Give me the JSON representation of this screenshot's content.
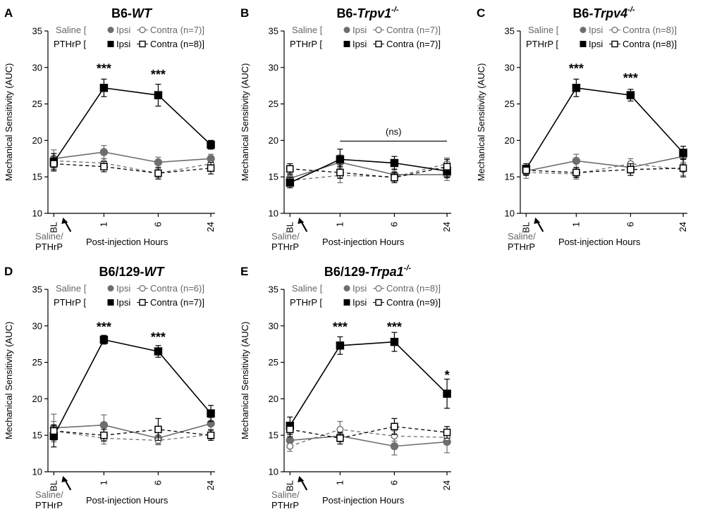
{
  "figure": {
    "y_axis_label": "Mechanical Sensitivity (AUC)",
    "x_axis_label": "Post-injection Hours",
    "x_tick_labels": [
      "BL",
      "1",
      "6",
      "24"
    ],
    "injection_label_1": "Saline/",
    "injection_label_2": "PTHrP",
    "legend_saline": "Saline [",
    "legend_pthrp": "PTHrP [",
    "legend_ipsi": "Ipsi",
    "colors": {
      "saline": "#6e6e6e",
      "pthrp": "#000000"
    }
  },
  "chart_data": [
    {
      "type": "line",
      "letter": "A",
      "title_prefix": "B6-",
      "title_italic": "WT",
      "title_sup": "",
      "xlabel": "Post-injection Hours",
      "ylabel": "Mechanical Sensitivity (AUC)",
      "ylim": [
        10,
        35
      ],
      "yticks": [
        10,
        15,
        20,
        25,
        30,
        35
      ],
      "categories": [
        "BL",
        "1",
        "6",
        "24"
      ],
      "legend_saline_tail": "Contra (n=7)]",
      "legend_pthrp_tail": "Contra (n=8)]",
      "series": [
        {
          "name": "Saline Ipsi",
          "values": [
            17.5,
            18.4,
            17.0,
            17.5
          ],
          "errors": [
            1.2,
            0.9,
            0.7,
            0.6
          ]
        },
        {
          "name": "Saline Contra",
          "values": [
            17.2,
            16.9,
            15.5,
            16.8
          ],
          "errors": [
            1.0,
            0.6,
            0.6,
            0.7
          ]
        },
        {
          "name": "PTHrP Ipsi",
          "values": [
            17.0,
            27.2,
            26.2,
            19.4
          ],
          "errors": [
            1.2,
            1.2,
            1.5,
            0.6
          ]
        },
        {
          "name": "PTHrP Contra",
          "values": [
            16.8,
            16.4,
            15.5,
            16.2
          ],
          "errors": [
            0.8,
            0.7,
            0.8,
            0.8
          ]
        }
      ],
      "annotations": [
        {
          "x_index": 1,
          "text": "***",
          "y": 30.2
        },
        {
          "x_index": 2,
          "text": "***",
          "y": 29.4
        }
      ],
      "bracket": null
    },
    {
      "type": "line",
      "letter": "B",
      "title_prefix": "B6-",
      "title_italic": "Trpv1",
      "title_sup": "-/-",
      "xlabel": "Post-injection Hours",
      "ylabel": "Mechanical Sensitivity (AUC)",
      "ylim": [
        10,
        35
      ],
      "yticks": [
        10,
        15,
        20,
        25,
        30,
        35
      ],
      "categories": [
        "BL",
        "1",
        "6",
        "24"
      ],
      "legend_saline_tail": "Contra (n=7)]",
      "legend_pthrp_tail": "Contra (n=7)]",
      "series": [
        {
          "name": "Saline Ipsi",
          "values": [
            14.8,
            17.0,
            15.3,
            15.3
          ],
          "errors": [
            0.8,
            1.0,
            0.8,
            0.8
          ]
        },
        {
          "name": "Saline Contra",
          "values": [
            14.5,
            15.2,
            15.0,
            16.8
          ],
          "errors": [
            0.8,
            1.0,
            0.6,
            0.8
          ]
        },
        {
          "name": "PTHrP Ipsi",
          "values": [
            14.2,
            17.4,
            16.9,
            15.8
          ],
          "errors": [
            0.7,
            1.4,
            0.9,
            0.9
          ]
        },
        {
          "name": "PTHrP Contra",
          "values": [
            16.1,
            15.6,
            14.9,
            16.4
          ],
          "errors": [
            0.7,
            0.8,
            0.7,
            1.0
          ]
        }
      ],
      "annotations": [],
      "bracket": {
        "from_index": 1,
        "to_index": 3,
        "y": 19.9,
        "text": "(ns)"
      }
    },
    {
      "type": "line",
      "letter": "C",
      "title_prefix": "B6-",
      "title_italic": "Trpv4",
      "title_sup": "-/-",
      "xlabel": "Post-injection Hours",
      "ylabel": "Mechanical Sensitivity (AUC)",
      "ylim": [
        10,
        35
      ],
      "yticks": [
        10,
        15,
        20,
        25,
        30,
        35
      ],
      "categories": [
        "BL",
        "1",
        "6",
        "24"
      ],
      "legend_saline_tail": "Contra (n=8)]",
      "legend_pthrp_tail": "Contra (n=8)]",
      "series": [
        {
          "name": "Saline Ipsi",
          "values": [
            15.8,
            17.2,
            16.3,
            17.8
          ],
          "errors": [
            0.6,
            0.9,
            0.8,
            0.8
          ]
        },
        {
          "name": "Saline Contra",
          "values": [
            15.6,
            15.4,
            16.8,
            16.0
          ],
          "errors": [
            0.8,
            0.7,
            0.7,
            0.8
          ]
        },
        {
          "name": "PTHrP Ipsi",
          "values": [
            16.1,
            27.2,
            26.2,
            18.3
          ],
          "errors": [
            0.7,
            1.2,
            0.8,
            0.9
          ]
        },
        {
          "name": "PTHrP Contra",
          "values": [
            15.9,
            15.6,
            16.0,
            16.2
          ],
          "errors": [
            0.7,
            0.7,
            0.8,
            1.2
          ]
        }
      ],
      "annotations": [
        {
          "x_index": 1,
          "text": "***",
          "y": 30.2
        },
        {
          "x_index": 2,
          "text": "***",
          "y": 28.9
        }
      ],
      "bracket": null
    },
    {
      "type": "line",
      "letter": "D",
      "title_prefix": "B6/129-",
      "title_italic": "WT",
      "title_sup": "",
      "xlabel": "Post-injection Hours",
      "ylabel": "Mechanical Sensitivity (AUC)",
      "ylim": [
        10,
        35
      ],
      "yticks": [
        10,
        15,
        20,
        25,
        30,
        35
      ],
      "categories": [
        "BL",
        "1",
        "6",
        "24"
      ],
      "legend_saline_tail": "Contra (n=6)]",
      "legend_pthrp_tail": "Contra (n=7)]",
      "series": [
        {
          "name": "Saline Ipsi",
          "values": [
            16.0,
            16.4,
            14.6,
            16.6
          ],
          "errors": [
            1.9,
            1.4,
            0.8,
            0.8
          ]
        },
        {
          "name": "Saline Contra",
          "values": [
            15.6,
            14.6,
            14.3,
            15.1
          ],
          "errors": [
            1.3,
            0.8,
            0.6,
            0.6
          ]
        },
        {
          "name": "PTHrP Ipsi",
          "values": [
            14.9,
            28.1,
            26.5,
            18.0
          ],
          "errors": [
            1.5,
            0.6,
            0.8,
            1.1
          ]
        },
        {
          "name": "PTHrP Contra",
          "values": [
            15.6,
            15.0,
            15.8,
            15.0
          ],
          "errors": [
            0.8,
            0.8,
            1.5,
            0.7
          ]
        }
      ],
      "annotations": [
        {
          "x_index": 1,
          "text": "***",
          "y": 30.2
        },
        {
          "x_index": 2,
          "text": "***",
          "y": 28.8
        }
      ],
      "bracket": null
    },
    {
      "type": "line",
      "letter": "E",
      "title_prefix": "B6/129-",
      "title_italic": "Trpa1",
      "title_sup": "-/-",
      "xlabel": "Post-injection Hours",
      "ylabel": "Mechanical Sensitivity (AUC)",
      "ylim": [
        10,
        35
      ],
      "yticks": [
        10,
        15,
        20,
        25,
        30,
        35
      ],
      "categories": [
        "BL",
        "1",
        "6",
        "24"
      ],
      "legend_saline_tail": "Contra (n=8)]",
      "legend_pthrp_tail": "Contra (n=9)]",
      "series": [
        {
          "name": "Saline Ipsi",
          "values": [
            14.3,
            14.9,
            13.5,
            14.1
          ],
          "errors": [
            1.0,
            0.8,
            1.2,
            1.5
          ]
        },
        {
          "name": "Saline Contra",
          "values": [
            13.5,
            15.8,
            14.9,
            14.7
          ],
          "errors": [
            0.7,
            1.1,
            0.7,
            0.6
          ]
        },
        {
          "name": "PTHrP Ipsi",
          "values": [
            16.3,
            27.3,
            27.8,
            20.7
          ],
          "errors": [
            1.2,
            1.2,
            1.3,
            2.0
          ]
        },
        {
          "name": "PTHrP Contra",
          "values": [
            15.8,
            14.6,
            16.2,
            15.4
          ],
          "errors": [
            1.0,
            0.8,
            1.1,
            0.8
          ]
        }
      ],
      "annotations": [
        {
          "x_index": 1,
          "text": "***",
          "y": 30.2
        },
        {
          "x_index": 2,
          "text": "***",
          "y": 30.2
        },
        {
          "x_index": 3,
          "text": "*",
          "y": 23.6
        }
      ],
      "bracket": null
    }
  ]
}
